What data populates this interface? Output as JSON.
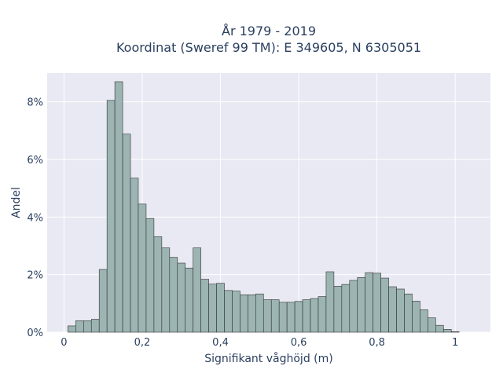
{
  "chart_data": {
    "type": "bar",
    "title_line1": "År 1979 - 2019",
    "title_line2": "Koordinat (Sweref 99 TM): E 349605, N 6305051",
    "xlabel": "Signifikant våghöjd (m)",
    "ylabel": "Andel",
    "xlim": [
      -0.043,
      1.09
    ],
    "ylim": [
      0,
      9.0
    ],
    "x_ticks": [
      {
        "value": 0,
        "label": "0"
      },
      {
        "value": 0.2,
        "label": "0,2"
      },
      {
        "value": 0.4,
        "label": "0,4"
      },
      {
        "value": 0.6,
        "label": "0,6"
      },
      {
        "value": 0.8,
        "label": "0,8"
      },
      {
        "value": 1,
        "label": "1"
      }
    ],
    "y_ticks": [
      {
        "value": 0,
        "label": "0%"
      },
      {
        "value": 2,
        "label": "2%"
      },
      {
        "value": 4,
        "label": "4%"
      },
      {
        "value": 6,
        "label": "6%"
      },
      {
        "value": 8,
        "label": "8%"
      }
    ],
    "bin_start": 0.01,
    "bin_width": 0.02,
    "values": [
      0.22,
      0.4,
      0.4,
      0.45,
      2.18,
      8.05,
      8.7,
      6.88,
      5.35,
      4.45,
      3.95,
      3.32,
      2.93,
      2.6,
      2.4,
      2.23,
      2.93,
      1.84,
      1.67,
      1.7,
      1.45,
      1.43,
      1.3,
      1.3,
      1.33,
      1.13,
      1.13,
      1.04,
      1.04,
      1.07,
      1.13,
      1.17,
      1.24,
      2.1,
      1.6,
      1.66,
      1.8,
      1.9,
      2.07,
      2.05,
      1.88,
      1.58,
      1.5,
      1.33,
      1.08,
      0.78,
      0.5,
      0.24,
      0.1,
      0.02
    ],
    "colors": {
      "bar_fill": "#9cb4b2",
      "bar_stroke": "#333333",
      "plot_bg": "#e8e9f3",
      "grid": "#ffffff",
      "text": "#2a3f5f"
    }
  }
}
